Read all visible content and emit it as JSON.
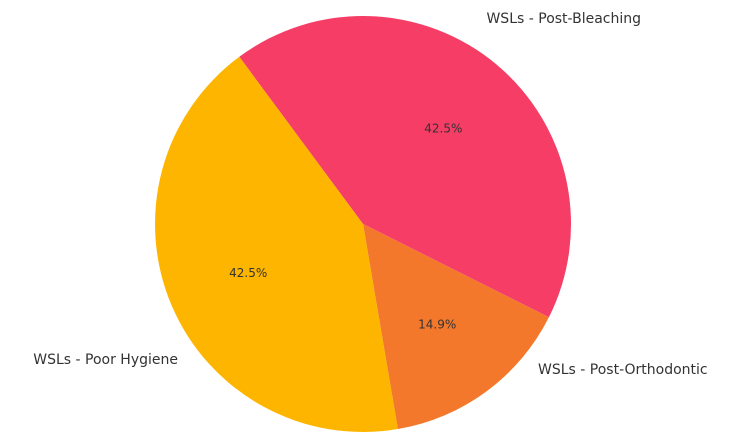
{
  "chart_data": {
    "type": "pie",
    "title": "",
    "slices": [
      {
        "label": "WSLs - Post-Bleaching",
        "percent": 42.5,
        "percent_label": "42.5%",
        "color": "#f53d65"
      },
      {
        "label": "WSLs - Post-Orthodontic",
        "percent": 14.9,
        "percent_label": "14.9%",
        "color": "#f4782b"
      },
      {
        "label": "WSLs - Poor Hygiene",
        "percent": 42.5,
        "percent_label": "42.5%",
        "color": "#fdb500"
      }
    ]
  }
}
